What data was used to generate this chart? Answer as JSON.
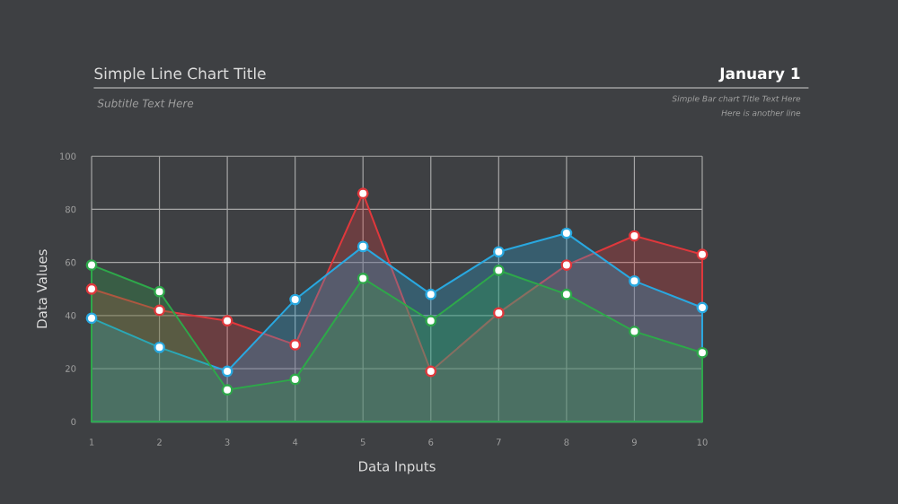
{
  "chart_data": {
    "type": "area",
    "title": "Simple Line Chart Title",
    "subtitle": "Subtitle Text Here",
    "xlabel": "Data Inputs",
    "ylabel": "Data Values",
    "annotations": [
      "January 1",
      "Simple Bar chart Title Text Here",
      "Here is another line"
    ],
    "x": [
      1,
      2,
      3,
      4,
      5,
      6,
      7,
      8,
      9,
      10
    ],
    "series": [
      {
        "color": "#e0383c",
        "values": [
          50,
          42,
          38,
          29,
          86,
          19,
          41,
          59,
          70,
          63
        ]
      },
      {
        "color": "#29a8e0",
        "values": [
          39,
          28,
          19,
          46,
          66,
          48,
          64,
          71,
          53,
          43
        ]
      },
      {
        "color": "#2ea84a",
        "values": [
          59,
          49,
          12,
          16,
          54,
          38,
          57,
          48,
          34,
          26
        ]
      }
    ],
    "xlim": [
      1,
      10
    ],
    "ylim": [
      0,
      100
    ],
    "xticks": [
      1,
      2,
      3,
      4,
      5,
      6,
      7,
      8,
      9,
      10
    ],
    "yticks": [
      0,
      20,
      40,
      60,
      80,
      100
    ],
    "grid": true,
    "marker": "circle"
  }
}
